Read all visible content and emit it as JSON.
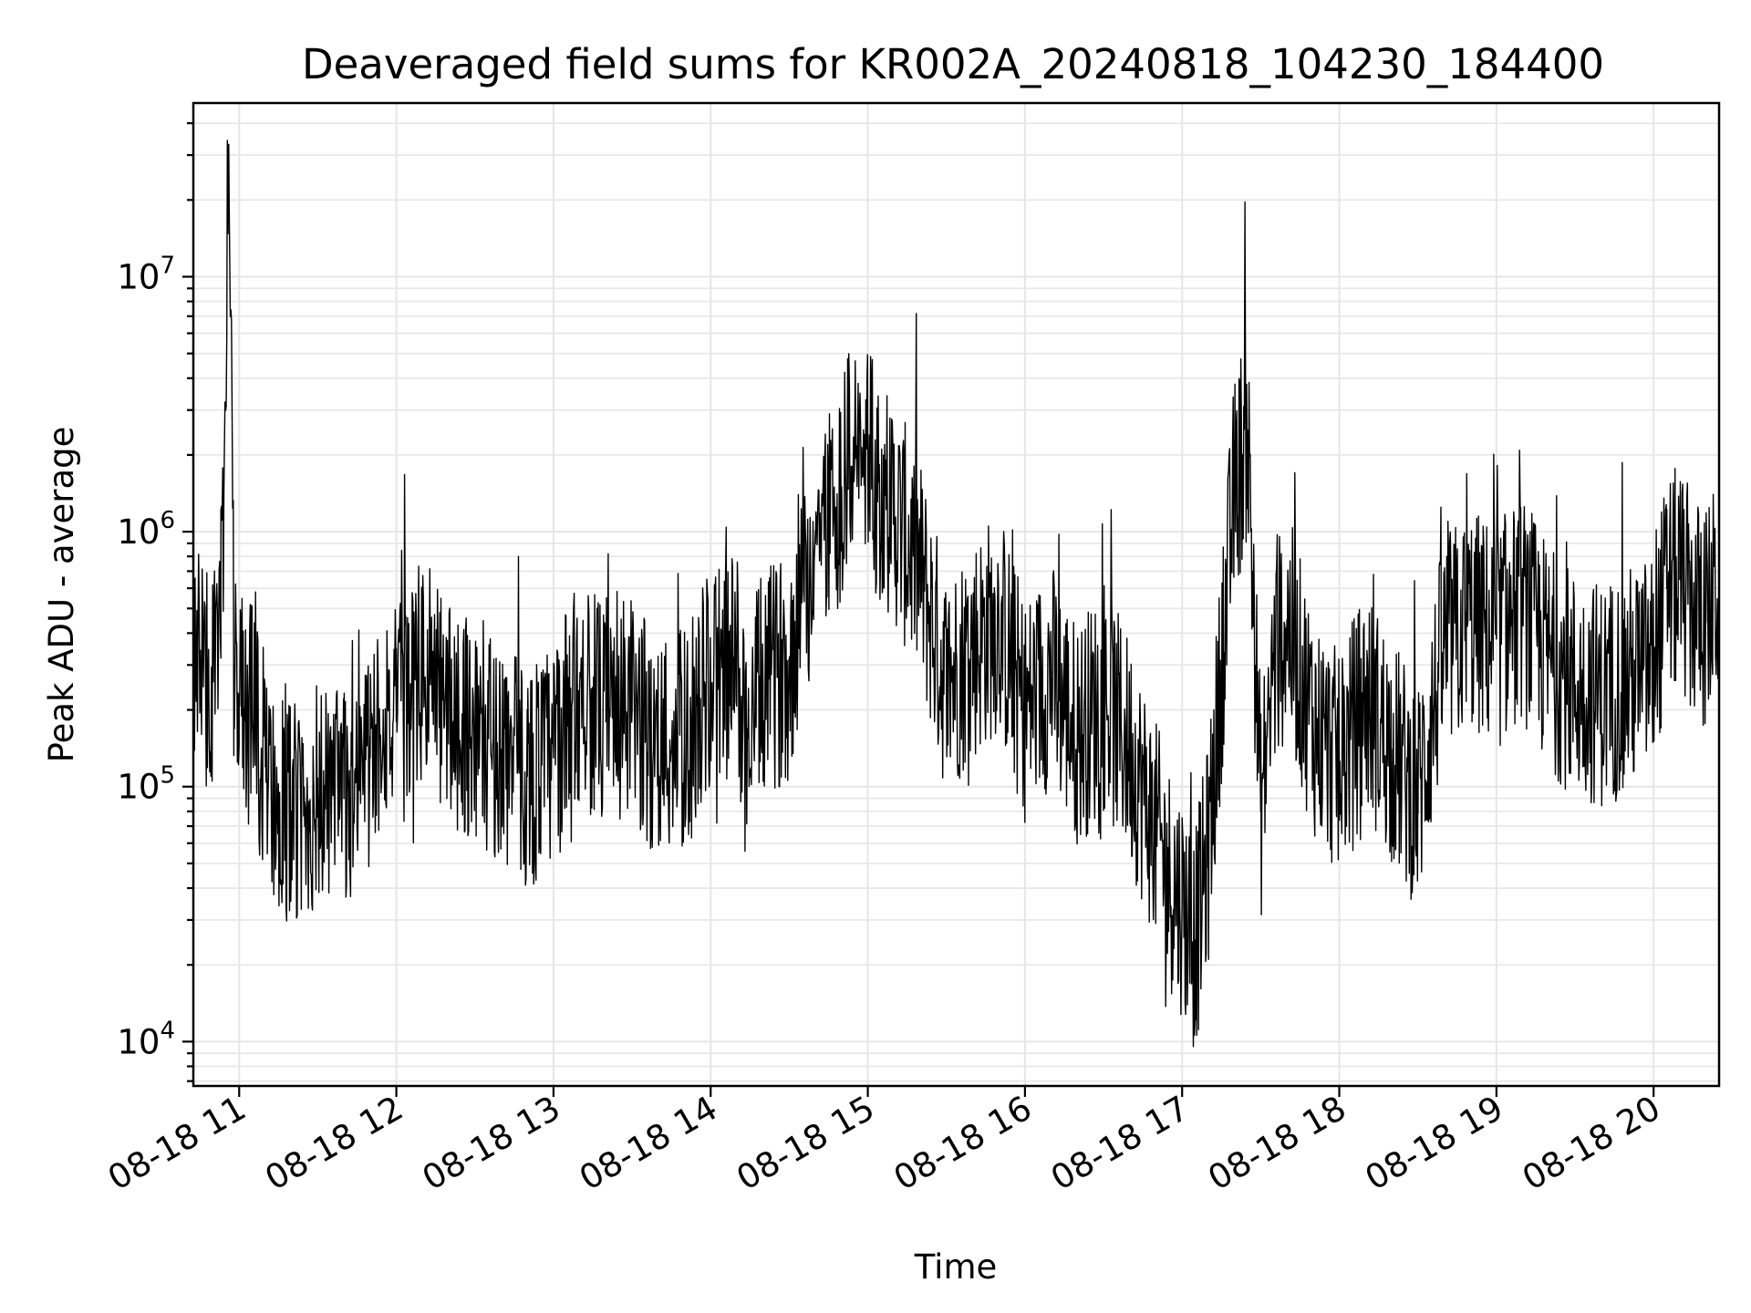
{
  "chart_data": {
    "type": "line",
    "title": "Deaveraged field sums for KR002A_20240818_104230_184400",
    "xlabel": "Time",
    "ylabel": "Peak ADU - average",
    "x_scale": "time",
    "y_scale": "log",
    "xlim": [
      "2024-08-18 10:42:30",
      "2024-08-18 20:25:00"
    ],
    "ylim": [
      6700,
      48000000
    ],
    "x_ticks": [
      {
        "value": "2024-08-18 11:00",
        "label": "08-18 11"
      },
      {
        "value": "2024-08-18 12:00",
        "label": "08-18 12"
      },
      {
        "value": "2024-08-18 13:00",
        "label": "08-18 13"
      },
      {
        "value": "2024-08-18 14:00",
        "label": "08-18 14"
      },
      {
        "value": "2024-08-18 15:00",
        "label": "08-18 15"
      },
      {
        "value": "2024-08-18 16:00",
        "label": "08-18 16"
      },
      {
        "value": "2024-08-18 17:00",
        "label": "08-18 17"
      },
      {
        "value": "2024-08-18 18:00",
        "label": "08-18 18"
      },
      {
        "value": "2024-08-18 19:00",
        "label": "08-18 19"
      },
      {
        "value": "2024-08-18 20:00",
        "label": "08-18 20"
      }
    ],
    "y_ticks": [
      {
        "value": 10000,
        "base": "10",
        "exp": "4"
      },
      {
        "value": 100000,
        "base": "10",
        "exp": "5"
      },
      {
        "value": 1000000,
        "base": "10",
        "exp": "6"
      },
      {
        "value": 10000000,
        "base": "10",
        "exp": "7"
      }
    ],
    "grid": true,
    "line_color": "#000000",
    "series": [
      {
        "x": [
          "2024-08-18 10:42:30",
          "2024-08-18 10:48",
          "2024-08-18 10:53",
          "2024-08-18 10:56",
          "2024-08-18 10:58",
          "2024-08-18 11:00",
          "2024-08-18 11:05",
          "2024-08-18 11:10",
          "2024-08-18 11:15",
          "2024-08-18 11:20",
          "2024-08-18 11:25",
          "2024-08-18 11:30",
          "2024-08-18 11:35",
          "2024-08-18 11:40",
          "2024-08-18 11:45",
          "2024-08-18 11:50",
          "2024-08-18 11:55",
          "2024-08-18 12:00",
          "2024-08-18 12:10",
          "2024-08-18 12:20",
          "2024-08-18 12:30",
          "2024-08-18 12:40",
          "2024-08-18 12:50",
          "2024-08-18 13:00",
          "2024-08-18 13:10",
          "2024-08-18 13:20",
          "2024-08-18 13:30",
          "2024-08-18 13:40",
          "2024-08-18 13:50",
          "2024-08-18 14:00",
          "2024-08-18 14:10",
          "2024-08-18 14:13",
          "2024-08-18 14:20",
          "2024-08-18 14:30",
          "2024-08-18 14:40",
          "2024-08-18 14:50",
          "2024-08-18 14:55",
          "2024-08-18 15:00",
          "2024-08-18 15:10",
          "2024-08-18 15:20",
          "2024-08-18 15:30",
          "2024-08-18 15:40",
          "2024-08-18 15:50",
          "2024-08-18 16:00",
          "2024-08-18 16:10",
          "2024-08-18 16:20",
          "2024-08-18 16:30",
          "2024-08-18 16:40",
          "2024-08-18 16:50",
          "2024-08-18 16:55",
          "2024-08-18 17:00",
          "2024-08-18 17:05",
          "2024-08-18 17:10",
          "2024-08-18 17:20",
          "2024-08-18 17:25",
          "2024-08-18 17:30",
          "2024-08-18 17:35",
          "2024-08-18 17:40",
          "2024-08-18 17:50",
          "2024-08-18 18:00",
          "2024-08-18 18:10",
          "2024-08-18 18:20",
          "2024-08-18 18:30",
          "2024-08-18 18:40",
          "2024-08-18 18:50",
          "2024-08-18 19:00",
          "2024-08-18 19:10",
          "2024-08-18 19:20",
          "2024-08-18 19:30",
          "2024-08-18 19:40",
          "2024-08-18 19:50",
          "2024-08-18 20:00",
          "2024-08-18 20:05",
          "2024-08-18 20:10",
          "2024-08-18 20:15",
          "2024-08-18 20:20",
          "2024-08-18 20:25"
        ],
        "y": [
          400000,
          250000,
          320000,
          33000000,
          300000,
          230000,
          180000,
          120000,
          90000,
          80000,
          70000,
          95000,
          85000,
          90000,
          110000,
          130000,
          200000,
          180000,
          280000,
          200000,
          170000,
          140000,
          110000,
          130000,
          250000,
          180000,
          200000,
          140000,
          150000,
          260000,
          310000,
          150000,
          250000,
          300000,
          900000,
          1500000,
          2200000,
          1800000,
          1200000,
          700000,
          250000,
          350000,
          450000,
          200000,
          280000,
          160000,
          220000,
          140000,
          65000,
          45000,
          35000,
          25000,
          55000,
          1500000,
          2500000,
          80000,
          300000,
          450000,
          180000,
          120000,
          220000,
          140000,
          90000,
          350000,
          450000,
          380000,
          500000,
          320000,
          250000,
          230000,
          260000,
          300000,
          600000,
          650000,
          500000,
          450000,
          600000
        ]
      }
    ]
  }
}
